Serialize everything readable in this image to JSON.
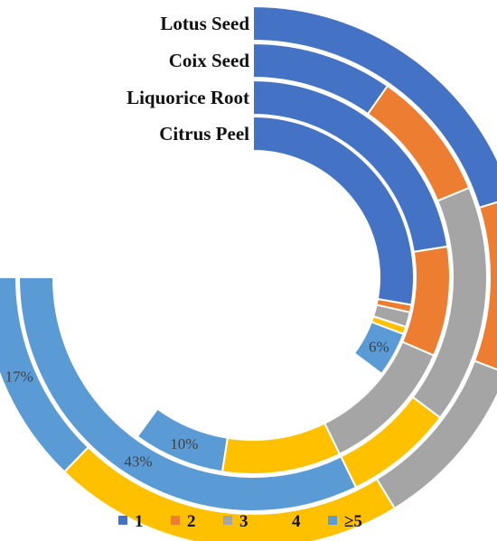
{
  "chart_data": {
    "type": "multi-level donut (radial bar)",
    "categories": [
      "1",
      "2",
      "3",
      "4",
      "≥5"
    ],
    "colors": {
      "1": "#4472C4",
      "2": "#ED7D31",
      "3": "#A5A5A5",
      "4": "#FFC000",
      "≥5": "#5B9BD5"
    },
    "rings": [
      {
        "name": "Lotus Seed",
        "values": [
          27,
          14,
          14,
          28,
          17
        ],
        "label": "17%"
      },
      {
        "name": "Coix Seed",
        "values": [
          13,
          12,
          22,
          10,
          43
        ],
        "label": "43%"
      },
      {
        "name": "Liquorice Root",
        "values": [
          30,
          12,
          15,
          13,
          10
        ],
        "label": "10%"
      },
      {
        "name": "Citrus Peel",
        "values": [
          37,
          1,
          2,
          1,
          6
        ],
        "label": "6%"
      }
    ],
    "value_unit": "%",
    "legend": [
      "1",
      "2",
      "3",
      "4",
      "≥5"
    ],
    "legend_position": "bottom"
  }
}
